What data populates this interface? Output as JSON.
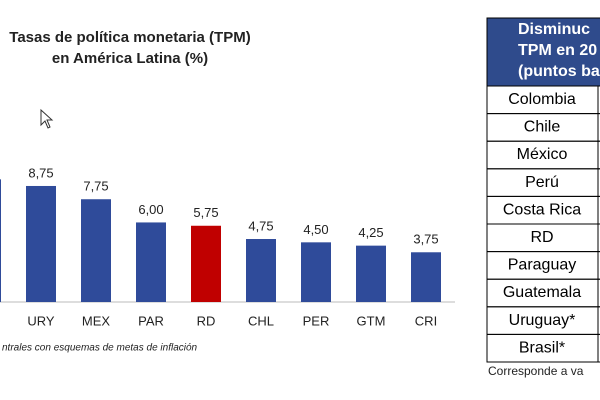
{
  "chart_data": {
    "type": "bar",
    "title_lines": [
      "Tasas de política monetaria (TPM)",
      "en América Latina (%)"
    ],
    "categories": [
      null,
      "URY",
      "MEX",
      "PAR",
      "RD",
      "CHL",
      "PER",
      "GTM",
      "CRI"
    ],
    "values": [
      9.25,
      8.75,
      7.75,
      6.0,
      5.75,
      4.75,
      4.5,
      4.25,
      3.75
    ],
    "value_labels": [
      null,
      "8,75",
      "7,75",
      "6,00",
      "5,75",
      "4,75",
      "4,50",
      "4,25",
      "3,75"
    ],
    "colors": [
      "#2f4b9a",
      "#2f4b9a",
      "#2f4b9a",
      "#2f4b9a",
      "#c00000",
      "#2f4b9a",
      "#2f4b9a",
      "#2f4b9a",
      "#2f4b9a"
    ],
    "ylim": [
      0,
      10
    ],
    "footnote": "ntrales con esquemas de metas de inflación"
  },
  "table": {
    "header": [
      "Disminuc",
      "TPM en 20",
      "(puntos ba"
    ],
    "rows": [
      "Colombia",
      "Chile",
      "México",
      "Perú",
      "Costa Rica",
      "RD",
      "Paraguay",
      "Guatemala",
      "Uruguay*",
      "Brasil*"
    ],
    "footnote": "Corresponde a va"
  }
}
